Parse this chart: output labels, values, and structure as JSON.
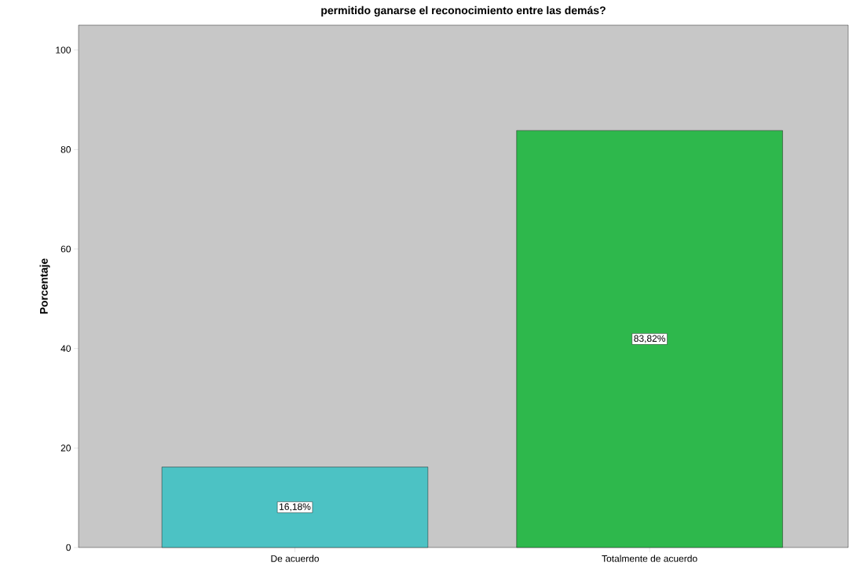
{
  "chart_data": {
    "type": "bar",
    "title": "permitido ganarse el reconocimiento entre las demás?",
    "ylabel": "Porcentaje",
    "categories": [
      "De acuerdo",
      "Totalmente de acuerdo"
    ],
    "values": [
      16.18,
      83.82
    ],
    "colors": [
      "#4cc2c4",
      "#2eb84c"
    ],
    "value_labels": [
      "16,18%",
      "83,82%"
    ],
    "ylim": [
      0,
      105
    ],
    "yticks": [
      0,
      20,
      40,
      60,
      80,
      100
    ]
  }
}
